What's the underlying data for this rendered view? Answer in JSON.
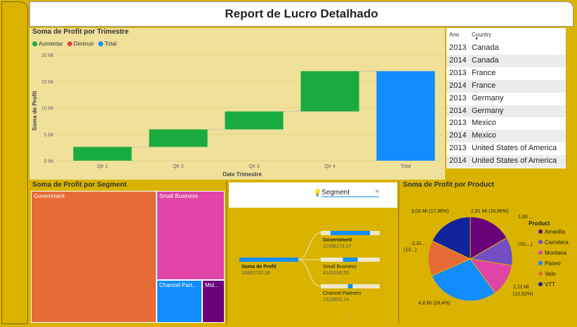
{
  "report": {
    "title": "Report de Lucro Detalhado"
  },
  "waterfall": {
    "title": "Soma de Profit por Trimestre",
    "legend": [
      {
        "label": "Aumentar",
        "color": "#1aab40"
      },
      {
        "label": "Diminuir",
        "color": "#e83e3e"
      },
      {
        "label": "Total",
        "color": "#118dff"
      }
    ],
    "xlabel": "Date Trimestre",
    "ylabel": "Soma de Profit",
    "yticks": [
      "20 Mi",
      "15 Mi",
      "10 Mi",
      "5 Mi",
      "0 Mi"
    ]
  },
  "table": {
    "col_year": "Ano",
    "col_country": "Country",
    "rows": [
      {
        "year": "2013",
        "country": "Canada"
      },
      {
        "year": "2014",
        "country": "Canada"
      },
      {
        "year": "2013",
        "country": "France"
      },
      {
        "year": "2014",
        "country": "France"
      },
      {
        "year": "2013",
        "country": "Germany"
      },
      {
        "year": "2014",
        "country": "Germany"
      },
      {
        "year": "2013",
        "country": "Mexico"
      },
      {
        "year": "2014",
        "country": "Mexico"
      },
      {
        "year": "2013",
        "country": "United States of America"
      },
      {
        "year": "2014",
        "country": "United States of America"
      }
    ]
  },
  "segment_treemap": {
    "title": "Soma de Profit por Segment",
    "cells": [
      {
        "label": "Government",
        "color": "#e66c37"
      },
      {
        "label": "Small Business",
        "color": "#e044a7"
      },
      {
        "label": "Channel Part...",
        "color": "#118dff"
      },
      {
        "label": "Mid...",
        "color": "#6b007b"
      }
    ]
  },
  "decomposition": {
    "search_placeholder": "Segment",
    "root": {
      "label": "Soma de Profit",
      "value": "16893702,26"
    },
    "nodes": [
      {
        "label": "Government",
        "value": "11388173,17",
        "fraction": 0.67
      },
      {
        "label": "Small Business",
        "value": "4143168,50",
        "fraction": 0.25
      },
      {
        "label": "Channel Partners",
        "value": "1316803,14",
        "fraction": 0.08
      }
    ]
  },
  "product_pie": {
    "title": "Soma de Profit por Product",
    "legend_title": "Product",
    "labels": [
      "3,03 Mi (17,96%)",
      "2,81 Mi (16,66%)",
      "1,83 ...",
      "(10,...)",
      "2,11 Mi",
      "(12,52%)",
      "4,8 Mi (28,4%)",
      "2,31...",
      "(13...)"
    ]
  },
  "chart_data": [
    {
      "type": "bar",
      "title": "Soma de Profit por Trimestre",
      "xlabel": "Date Trimestre",
      "ylabel": "Soma de Profit",
      "categories": [
        "Qtr 1",
        "Qtr 2",
        "Qtr 3",
        "Qtr 4",
        "Total"
      ],
      "series": [
        {
          "name": "Aumentar",
          "values": [
            2.6,
            3.3,
            3.4,
            7.6,
            null
          ]
        },
        {
          "name": "Total",
          "values": [
            null,
            null,
            null,
            null,
            16.9
          ]
        }
      ],
      "ylim": [
        0,
        20
      ]
    },
    {
      "type": "pie",
      "title": "Soma de Profit por Product",
      "categories": [
        "Amarilla",
        "Carretera",
        "Montana",
        "Paseo",
        "Velo",
        "VTT"
      ],
      "values": [
        2.81,
        1.83,
        2.11,
        4.8,
        2.31,
        3.03
      ],
      "colors": [
        "#6b007b",
        "#744ec2",
        "#e044a7",
        "#118dff",
        "#e66c37",
        "#12239e"
      ]
    }
  ]
}
